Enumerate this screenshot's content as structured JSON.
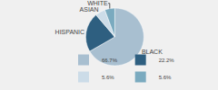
{
  "chart_data": {
    "type": "pie",
    "categories": [
      "BLACK",
      "HISPANIC",
      "ASIAN",
      "WHITE"
    ],
    "values": [
      66.7,
      22.2,
      5.6,
      5.6
    ],
    "value_labels": [
      "66.7%",
      "22.2%",
      "5.6%",
      "5.6%"
    ],
    "colors": [
      "#a8bfd0",
      "#2e5f80",
      "#ccdce8",
      "#7aaabf"
    ],
    "legend": "bottom"
  }
}
